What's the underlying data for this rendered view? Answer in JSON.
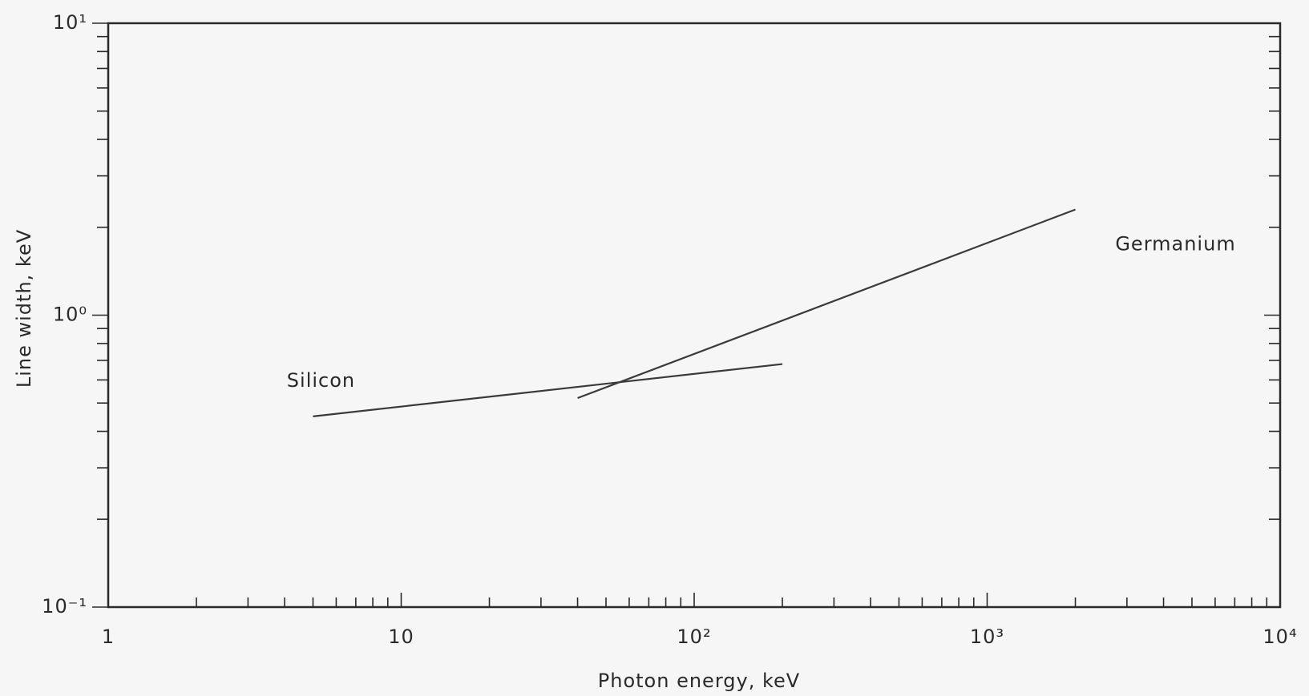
{
  "chart_data": {
    "type": "line",
    "xlabel": "Photon energy, keV",
    "ylabel": "Line width, keV",
    "xscale": "log",
    "yscale": "log",
    "xlim": [
      1,
      10000
    ],
    "ylim": [
      0.1,
      10
    ],
    "xticks": [
      1,
      10,
      {
        "value": 100,
        "label": "10²"
      },
      {
        "value": 1000,
        "label": "10³"
      },
      {
        "value": 10000,
        "label": "10⁴"
      }
    ],
    "yticks": [
      {
        "value": 0.1,
        "label": "10⁻¹"
      },
      {
        "value": 1,
        "label": "10⁰"
      },
      {
        "value": 10,
        "label": "10¹"
      }
    ],
    "series": [
      {
        "name": "Silicon",
        "color": "#3a3a3a",
        "x": [
          5,
          200
        ],
        "values": [
          0.45,
          0.68
        ]
      },
      {
        "name": "Germanium",
        "color": "#3a3a3a",
        "x": [
          40,
          2000
        ],
        "values": [
          0.52,
          2.3
        ]
      }
    ]
  }
}
